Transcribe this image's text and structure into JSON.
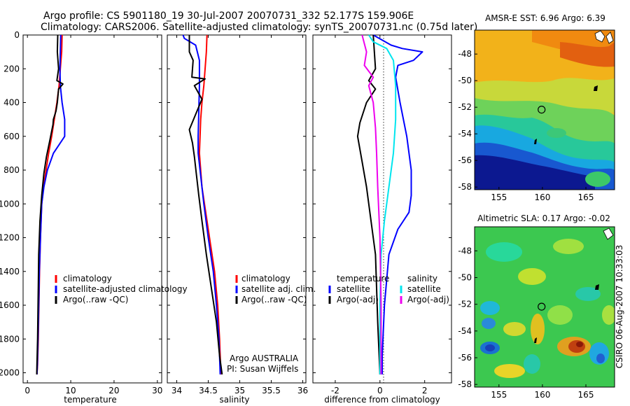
{
  "header": {
    "line1": "Argo profile: CS 5901180_19 30-Jul-2007 20070731_332 52.177S 159.906E",
    "line2": "Climatology: CARS2006. Satellite-adjusted climatology: synTS_20070731.nc (0.75d later)"
  },
  "side_note": "CSIRO 06-Aug-2007 10:33:03",
  "credit": {
    "line1": "Argo AUSTRALIA",
    "line2": "PI: Susan Wijffels"
  },
  "colors": {
    "black": "#000000",
    "red": "#ff0000",
    "blue": "#0000ff",
    "cyan": "#00e5ee",
    "magenta": "#ee00ee"
  },
  "chart_data": [
    {
      "type": "line",
      "panel": "temperature",
      "xlabel": "temperature",
      "xlim": [
        -1,
        31
      ],
      "xticks": [
        0,
        10,
        20,
        30
      ],
      "ylim": [
        0,
        2060
      ],
      "yticks": [
        0,
        200,
        400,
        600,
        800,
        1000,
        1200,
        1400,
        1600,
        1800,
        2000
      ],
      "yreversed": true,
      "legend": [
        "climatology",
        "satellite-adjusted climatology",
        "Argo(..raw -QC)"
      ],
      "series": [
        {
          "name": "climatology",
          "color": "red",
          "x": [
            8.0,
            7.9,
            7.6,
            7.3,
            6.8,
            6.2,
            5.6,
            4.9,
            4.3,
            3.7,
            3.3,
            3.0,
            2.8,
            2.65,
            2.5,
            2.35,
            2.2
          ],
          "y": [
            0,
            100,
            200,
            300,
            400,
            500,
            600,
            700,
            800,
            900,
            1000,
            1200,
            1400,
            1600,
            1800,
            1950,
            2010
          ]
        },
        {
          "name": "satellite-adjusted climatology",
          "color": "blue",
          "x": [
            7.7,
            7.6,
            7.5,
            7.6,
            8.0,
            8.6,
            8.6,
            6.0,
            4.6,
            3.8,
            3.3,
            3.0,
            2.75,
            2.6,
            2.45,
            2.3,
            2.2
          ],
          "y": [
            0,
            100,
            200,
            300,
            400,
            500,
            600,
            700,
            800,
            900,
            1000,
            1200,
            1400,
            1600,
            1800,
            1950,
            2010
          ]
        },
        {
          "name": "Argo(..raw -QC)",
          "color": "black",
          "x": [
            7.0,
            6.9,
            7.2,
            6.8,
            8.2,
            7.2,
            6.9,
            6.6,
            6.0,
            5.9,
            5.2,
            4.4,
            3.8,
            3.3,
            2.9,
            2.6,
            2.5,
            2.35,
            2.2,
            2.15
          ],
          "y": [
            0,
            100,
            200,
            270,
            290,
            320,
            400,
            450,
            500,
            530,
            620,
            720,
            820,
            950,
            1100,
            1300,
            1500,
            1800,
            1950,
            2010
          ]
        }
      ]
    },
    {
      "type": "line",
      "panel": "salinity",
      "xlabel": "salinity",
      "xlim": [
        33.85,
        36.05
      ],
      "xticks": [
        34,
        34.5,
        35,
        35.5,
        36
      ],
      "ylim": [
        0,
        2060
      ],
      "yreversed": true,
      "legend": [
        "climatology",
        "satellite adj. clim.",
        "Argo(..raw -QC)"
      ],
      "series": [
        {
          "name": "climatology",
          "color": "red",
          "x": [
            34.48,
            34.47,
            34.45,
            34.43,
            34.4,
            34.38,
            34.37,
            34.36,
            34.38,
            34.4,
            34.44,
            34.52,
            34.6,
            34.65,
            34.68,
            34.7
          ],
          "y": [
            0,
            100,
            200,
            300,
            400,
            500,
            600,
            700,
            800,
            900,
            1000,
            1200,
            1400,
            1600,
            1800,
            2010
          ]
        },
        {
          "name": "satellite adj. clim.",
          "color": "blue",
          "x": [
            34.1,
            34.12,
            34.3,
            34.36,
            34.36,
            34.35,
            34.34,
            34.34,
            34.37,
            34.4,
            34.43,
            34.5,
            34.58,
            34.63,
            34.67,
            34.69
          ],
          "y": [
            0,
            20,
            60,
            150,
            300,
            450,
            600,
            700,
            800,
            900,
            1000,
            1200,
            1400,
            1600,
            1800,
            2010
          ]
        },
        {
          "name": "Argo(..raw -QC)",
          "color": "black",
          "x": [
            34.2,
            34.2,
            34.26,
            34.24,
            34.45,
            34.28,
            34.4,
            34.3,
            34.2,
            34.25,
            34.28,
            34.31,
            34.35,
            34.4,
            34.47,
            34.55,
            34.63,
            34.68,
            34.72
          ],
          "y": [
            0,
            100,
            150,
            250,
            260,
            300,
            380,
            470,
            560,
            640,
            720,
            820,
            950,
            1100,
            1300,
            1500,
            1700,
            1900,
            2010
          ]
        }
      ]
    },
    {
      "type": "line",
      "panel": "difference",
      "xlabel": "difference from climatology",
      "xlim": [
        -3,
        3.2
      ],
      "xticks": [
        -2,
        0,
        2
      ],
      "ylim": [
        0,
        2060
      ],
      "yreversed": true,
      "legend_left": {
        "header": "temperature",
        "entries": [
          "satellite",
          "Argo(-adj)"
        ]
      },
      "legend_right": {
        "header": "salinity",
        "entries": [
          "satellite",
          "Argo(-adj)"
        ]
      },
      "series": [
        {
          "name": "temperature satellite",
          "color": "blue",
          "x": [
            -0.3,
            0.5,
            1.0,
            1.9,
            1.5,
            0.8,
            0.7,
            0.9,
            1.2,
            1.4,
            1.4,
            1.3,
            0.8,
            0.4,
            0.2,
            0.1,
            0.1
          ],
          "y": [
            0,
            60,
            80,
            100,
            150,
            180,
            250,
            400,
            600,
            800,
            950,
            1050,
            1150,
            1300,
            1600,
            1900,
            2010
          ]
        },
        {
          "name": "temperature Argo(-adj)",
          "color": "black",
          "x": [
            -0.3,
            -0.25,
            -0.2,
            -0.5,
            -0.2,
            -0.6,
            -0.9,
            -1.0,
            -0.8,
            -0.6,
            -0.4,
            -0.2,
            -0.1,
            0.0
          ],
          "y": [
            0,
            100,
            200,
            270,
            320,
            400,
            520,
            600,
            750,
            900,
            1100,
            1300,
            1700,
            2010
          ]
        },
        {
          "name": "salinity satellite",
          "color": "cyan",
          "x": [
            -0.5,
            -0.3,
            0.3,
            0.6,
            0.7,
            0.7,
            0.6,
            0.4,
            0.2,
            0.05,
            0.0,
            0.0
          ],
          "y": [
            0,
            40,
            80,
            150,
            300,
            500,
            700,
            900,
            1100,
            1300,
            1600,
            2010
          ]
        },
        {
          "name": "salinity Argo(-adj)",
          "color": "magenta",
          "x": [
            -0.8,
            -0.6,
            -0.7,
            -0.3,
            -0.5,
            -0.3,
            -0.2,
            -0.15,
            -0.1,
            0.0,
            0.05,
            0.05
          ],
          "y": [
            0,
            100,
            180,
            250,
            300,
            400,
            550,
            700,
            900,
            1200,
            1600,
            2010
          ]
        }
      ]
    },
    {
      "type": "heatmap",
      "panel": "map_sst",
      "title": "AMSR-E SST: 6.96 Argo: 6.39",
      "xticks": [
        155,
        160,
        165
      ],
      "yticks": [
        -48,
        -50,
        -52,
        -54,
        -56,
        -58
      ],
      "xlim": [
        152.2,
        168.3
      ],
      "ylim": [
        -58.2,
        -46.2
      ],
      "argo_position": [
        159.906,
        -52.177
      ]
    },
    {
      "type": "heatmap",
      "panel": "map_sla",
      "title": "Altimetric SLA: 0.17 Argo: -0.02",
      "xticks": [
        155,
        160,
        165
      ],
      "yticks": [
        -48,
        -50,
        -52,
        -54,
        -56,
        -58
      ],
      "xlim": [
        152.2,
        168.3
      ],
      "ylim": [
        -58.2,
        -46.2
      ],
      "argo_position": [
        159.906,
        -52.177
      ]
    }
  ]
}
